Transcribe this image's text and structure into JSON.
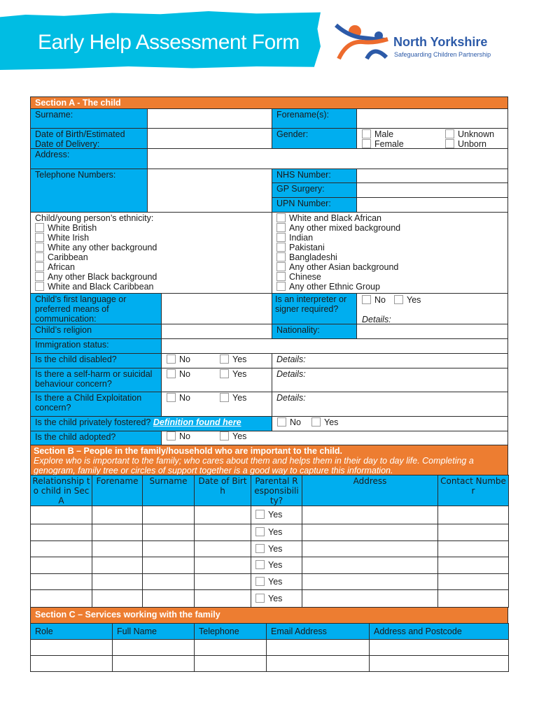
{
  "header": {
    "title": "Early Help Assessment Form",
    "logo_name": "North Yorkshire",
    "logo_sub": "Safeguarding Children Partnership"
  },
  "colors": {
    "section": "#ED7D31",
    "label": "#00AEEF",
    "banner": "#00BDE3"
  },
  "sectionA": {
    "title": "Section A - The child",
    "surname": "Surname:",
    "forename": "Forename(s):",
    "dob": "Date of Birth/Estimated Date of Delivery:",
    "gender": "Gender:",
    "gender_opts": [
      "Male",
      "Female",
      "Unknown",
      "Unborn"
    ],
    "address": "Address:",
    "telephone": "Telephone Numbers:",
    "nhs": "NHS Number:",
    "gp": "GP Surgery:",
    "upn": "UPN Number:",
    "ethnicity": "Child/young person’s ethnicity:",
    "eth_left": [
      "White British",
      "White Irish",
      "White any other background",
      "Caribbean",
      "African",
      "Any other Black background",
      "White and Black Caribbean"
    ],
    "eth_right": [
      "White and Black African",
      "Any other mixed background",
      "Indian",
      "Pakistani",
      "Bangladeshi",
      "Any other Asian background",
      "Chinese",
      "Any other Ethnic Group"
    ],
    "language": "Child’s first language or preferred means of communication:",
    "interpreter": "Is an interpreter or signer required?",
    "religion": "Child’s religion",
    "nationality": "Nationality:",
    "immigration": "Immigration status:",
    "disabled": "Is the child disabled?",
    "selfharm": "Is there a self-harm or suicidal behaviour concern?",
    "exploitation": "Is there a Child Exploitation concern?",
    "fostered": "Is the child privately fostered?",
    "fostered_link": "Definition found here",
    "adopted": "Is the child adopted?",
    "no": "No",
    "yes": "Yes",
    "details": "Details:"
  },
  "sectionB": {
    "title": "Section B – People in the family/household who are important to the child.",
    "intro": "Explore who is important to the family; who cares about them and helps them in their day to day life. Completing a genogram, family tree or circles of support together is a good way to capture this information.",
    "columns": [
      "Relationship to child in Sec A",
      "Forename",
      "Surname",
      "Date of Birth",
      "Parental Responsibility?",
      "Address",
      "Contact Number"
    ],
    "row_yes": "Yes"
  },
  "sectionC": {
    "title": "Section C – Services working with the family",
    "columns": [
      "Role",
      "Full Name",
      "Telephone",
      "Email Address",
      "Address and Postcode"
    ]
  }
}
